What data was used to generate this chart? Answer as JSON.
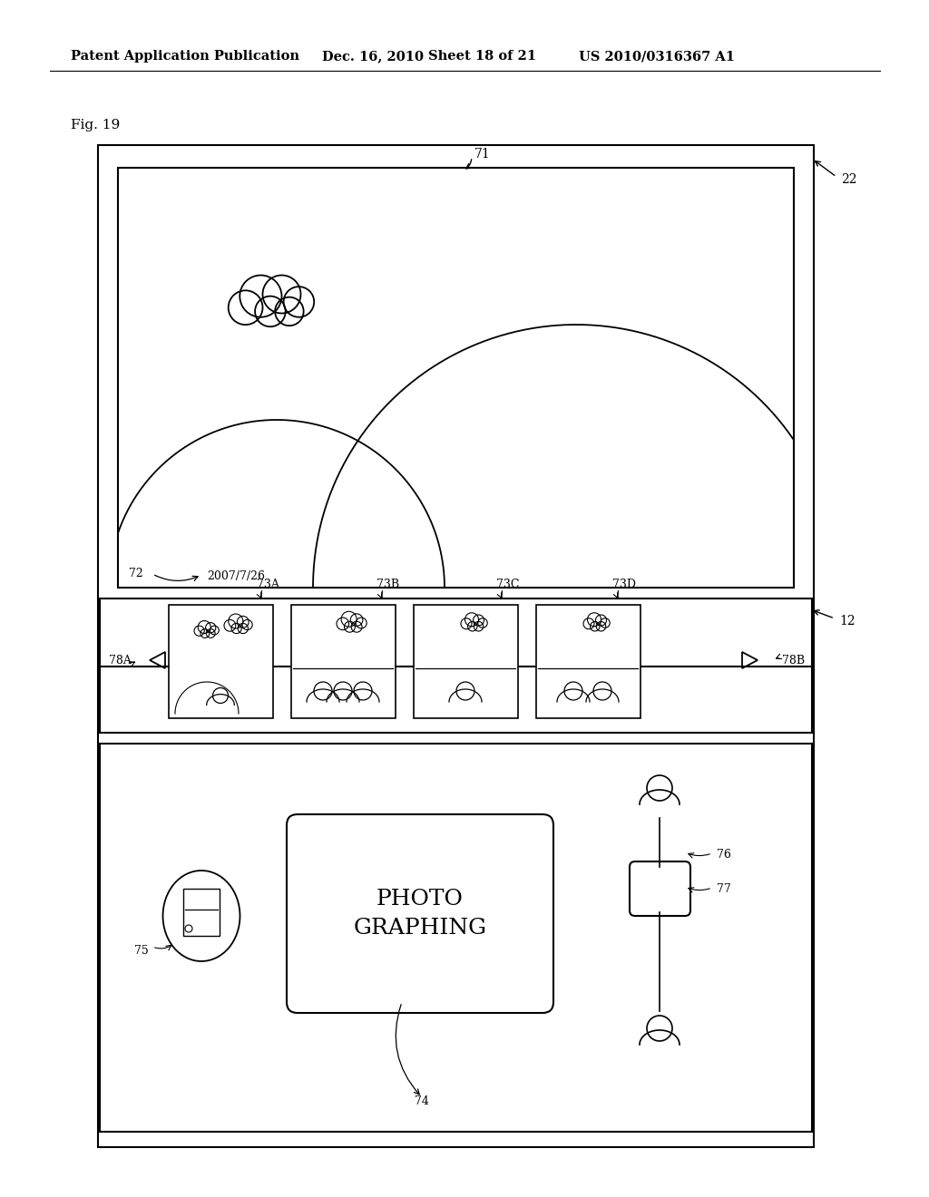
{
  "bg_color": "#ffffff",
  "header_text": "Patent Application Publication",
  "header_date": "Dec. 16, 2010",
  "header_sheet": "Sheet 18 of 21",
  "header_patent": "US 2010/0316367 A1",
  "fig_label": "Fig. 19",
  "label_22": "22",
  "label_71": "71",
  "label_72": "72",
  "date_text": "2007/7/26",
  "label_12": "12",
  "label_73A": "73A",
  "label_73B": "73B",
  "label_73C": "73C",
  "label_73D": "73D",
  "label_78A": "78A",
  "label_78B": "78B",
  "label_75": "75",
  "label_74": "74",
  "label_76": "76",
  "label_77": "77",
  "photo_text": "PHOTO\nGRAPHING"
}
